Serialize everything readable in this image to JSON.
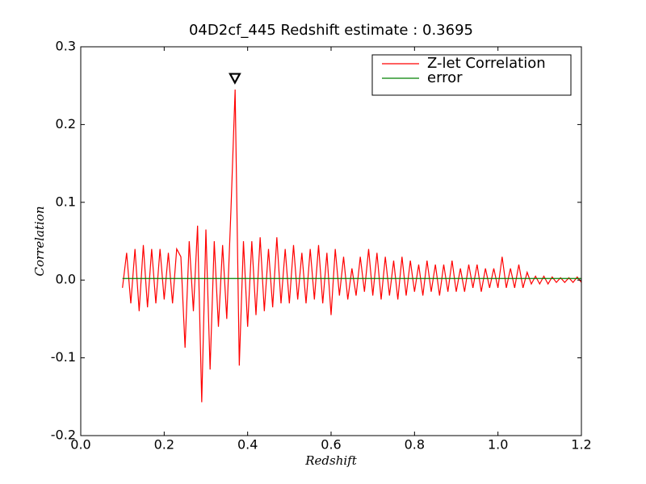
{
  "chart_data": {
    "type": "line",
    "title": "04D2cf_445 Redshift estimate : 0.3695",
    "xlabel": "Redshift",
    "ylabel": "Correlation",
    "xlim": [
      0,
      1.2
    ],
    "ylim": [
      -0.2,
      0.3
    ],
    "xticks": [
      {
        "value": 0,
        "label": "0.0"
      },
      0.2,
      0.4,
      0.6,
      0.8,
      {
        "value": 1,
        "label": "1.0"
      },
      1.2
    ],
    "yticks": [
      -0.2,
      -0.1,
      {
        "value": 0,
        "label": "0.0"
      },
      0.1,
      0.2,
      0.3
    ],
    "legend": "upper right",
    "peak_marker": {
      "x": 0.3695,
      "y": 0.26
    },
    "series": [
      {
        "name": "Z-let Correlation",
        "color": "#ff0000",
        "x": [
          0.1,
          0.11,
          0.12,
          0.13,
          0.14,
          0.15,
          0.16,
          0.17,
          0.18,
          0.19,
          0.2,
          0.21,
          0.22,
          0.23,
          0.24,
          0.25,
          0.26,
          0.27,
          0.28,
          0.29,
          0.3,
          0.31,
          0.32,
          0.33,
          0.34,
          0.35,
          0.36,
          0.37,
          0.38,
          0.39,
          0.4,
          0.41,
          0.42,
          0.43,
          0.44,
          0.45,
          0.46,
          0.47,
          0.48,
          0.49,
          0.5,
          0.51,
          0.52,
          0.53,
          0.54,
          0.55,
          0.56,
          0.57,
          0.58,
          0.59,
          0.6,
          0.61,
          0.62,
          0.63,
          0.64,
          0.65,
          0.66,
          0.67,
          0.68,
          0.69,
          0.7,
          0.71,
          0.72,
          0.73,
          0.74,
          0.75,
          0.76,
          0.77,
          0.78,
          0.79,
          0.8,
          0.81,
          0.82,
          0.83,
          0.84,
          0.85,
          0.86,
          0.87,
          0.88,
          0.89,
          0.9,
          0.91,
          0.92,
          0.93,
          0.94,
          0.95,
          0.96,
          0.97,
          0.98,
          0.99,
          1.0,
          1.01,
          1.02,
          1.03,
          1.04,
          1.05,
          1.06,
          1.07,
          1.08,
          1.09,
          1.1,
          1.11,
          1.12,
          1.13,
          1.14,
          1.15,
          1.16,
          1.17,
          1.18,
          1.19,
          1.2
        ],
        "values": [
          -0.01,
          0.035,
          -0.03,
          0.04,
          -0.04,
          0.045,
          -0.035,
          0.04,
          -0.03,
          0.04,
          -0.025,
          0.035,
          -0.03,
          0.04,
          0.03,
          -0.087,
          0.05,
          -0.04,
          0.07,
          -0.157,
          0.065,
          -0.115,
          0.05,
          -0.06,
          0.045,
          -0.05,
          0.09,
          0.245,
          -0.11,
          0.05,
          -0.06,
          0.05,
          -0.045,
          0.055,
          -0.04,
          0.04,
          -0.035,
          0.055,
          -0.03,
          0.04,
          -0.03,
          0.045,
          -0.025,
          0.035,
          -0.03,
          0.04,
          -0.025,
          0.045,
          -0.03,
          0.035,
          -0.045,
          0.04,
          -0.02,
          0.03,
          -0.025,
          0.015,
          -0.02,
          0.03,
          -0.015,
          0.04,
          -0.02,
          0.035,
          -0.025,
          0.03,
          -0.02,
          0.025,
          -0.025,
          0.03,
          -0.02,
          0.025,
          -0.015,
          0.02,
          -0.02,
          0.025,
          -0.015,
          0.02,
          -0.02,
          0.02,
          -0.015,
          0.025,
          -0.015,
          0.015,
          -0.015,
          0.02,
          -0.01,
          0.02,
          -0.015,
          0.015,
          -0.01,
          0.015,
          -0.01,
          0.03,
          -0.01,
          0.015,
          -0.01,
          0.02,
          -0.01,
          0.01,
          -0.005,
          0.005,
          -0.005,
          0.005,
          -0.005,
          0.004,
          -0.003,
          0.003,
          -0.003,
          0.003,
          -0.003,
          0.004,
          -0.003
        ]
      },
      {
        "name": "error",
        "color": "#008000",
        "x": [
          0.1,
          1.2
        ],
        "values": [
          0.002,
          0.002
        ]
      }
    ]
  }
}
